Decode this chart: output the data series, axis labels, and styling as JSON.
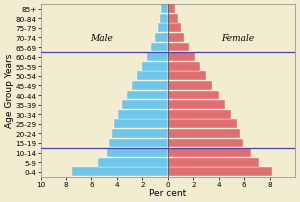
{
  "age_groups": [
    "0-4",
    "5-9",
    "10-14",
    "15-19",
    "20-24",
    "25-29",
    "30-34",
    "35-39",
    "40-44",
    "45-49",
    "50-54",
    "55-59",
    "60-64",
    "65-69",
    "70-74",
    "75-79",
    "80-84",
    "85+"
  ],
  "male": [
    7.5,
    5.5,
    4.8,
    4.6,
    4.4,
    4.2,
    3.9,
    3.6,
    3.2,
    2.8,
    2.4,
    2.0,
    1.6,
    1.3,
    1.0,
    0.8,
    0.6,
    0.5
  ],
  "female": [
    8.2,
    7.2,
    6.5,
    5.9,
    5.7,
    5.4,
    5.0,
    4.5,
    4.0,
    3.5,
    3.0,
    2.5,
    2.1,
    1.7,
    1.3,
    1.0,
    0.8,
    0.6
  ],
  "male_color": "#6EC6E8",
  "female_color": "#E07070",
  "bg_color": "#F2EDD0",
  "hline_color": "#4444AA",
  "xlabel": "Per cent",
  "ylabel": "Age Group Years",
  "male_label": "Male",
  "female_label": "Female",
  "xlim": 10,
  "label_fontsize": 6.5,
  "tick_fontsize": 5.2,
  "hline_indices": [
    2,
    12
  ]
}
